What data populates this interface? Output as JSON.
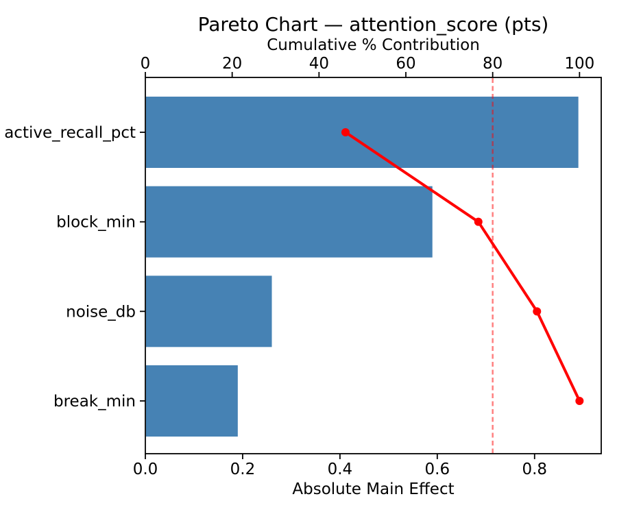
{
  "chart_data": {
    "type": "bar",
    "subtype": "pareto-horizontal",
    "title": "Pareto Chart — attention_score (pts)",
    "categories": [
      "active_recall_pct",
      "block_min",
      "noise_db",
      "break_min"
    ],
    "series": [
      {
        "name": "Absolute Main Effect",
        "kind": "barh",
        "values": [
          0.89,
          0.59,
          0.26,
          0.19
        ],
        "color": "#4682B4"
      },
      {
        "name": "Cumulative % Contribution",
        "kind": "line",
        "values": [
          46.1,
          76.7,
          90.2,
          100.0
        ],
        "color": "#ff0000",
        "marker": "circle"
      }
    ],
    "threshold_line": {
      "value": 80,
      "axis": "top",
      "style": "dashed",
      "color": "rgba(255,0,0,0.5)"
    },
    "top_axis": {
      "label": "Cumulative % Contribution",
      "tick_values": [
        0,
        20,
        40,
        60,
        80,
        100
      ],
      "tick_labels": [
        "0",
        "20",
        "40",
        "60",
        "80",
        "100"
      ],
      "range": [
        0,
        105
      ]
    },
    "bottom_axis": {
      "label": "Absolute Main Effect",
      "tick_values": [
        0.0,
        0.2,
        0.4,
        0.6,
        0.8
      ],
      "tick_labels": [
        "0.0",
        "0.2",
        "0.4",
        "0.6",
        "0.8"
      ],
      "range": [
        0,
        0.937
      ]
    },
    "grid": false,
    "legend": "none",
    "colors": {
      "bar": "#4682B4",
      "line": "#ff0000",
      "threshold": "rgba(255,0,0,0.5)",
      "spine": "#000000",
      "text": "#000000",
      "background": "#ffffff"
    }
  }
}
